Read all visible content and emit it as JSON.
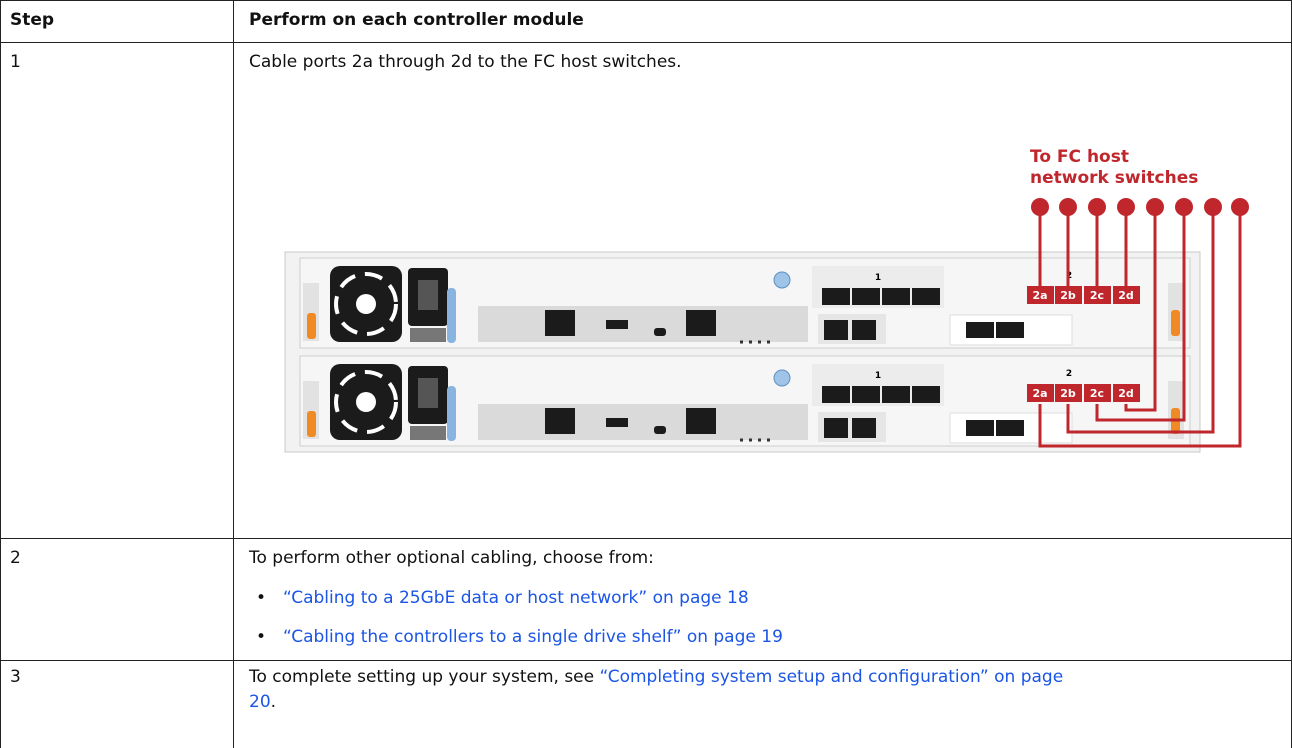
{
  "table": {
    "headers": [
      "Step",
      "Perform on each controller module"
    ],
    "rows": [
      {
        "step": "1",
        "text": "Cable ports 2a through 2d to the FC host switches.",
        "figure": {
          "callout": [
            "To FC host",
            "network switches"
          ],
          "controllers": [
            {
              "slots": [
                "1",
                "2"
              ],
              "ports": [
                "2a",
                "2b",
                "2c",
                "2d"
              ]
            },
            {
              "slots": [
                "1",
                "2"
              ],
              "ports": [
                "2a",
                "2b",
                "2c",
                "2d"
              ]
            }
          ]
        }
      },
      {
        "step": "2",
        "text": "To perform other optional cabling, choose from:",
        "links": [
          "“Cabling to a 25GbE data or host network” on page 18",
          "“Cabling the controllers to a single drive shelf” on page 19"
        ]
      },
      {
        "step": "3",
        "text": "To complete setting up your system, see ",
        "link": [
          "“Completing system setup and configuration” on page",
          "20"
        ],
        "suffix": "."
      }
    ]
  }
}
